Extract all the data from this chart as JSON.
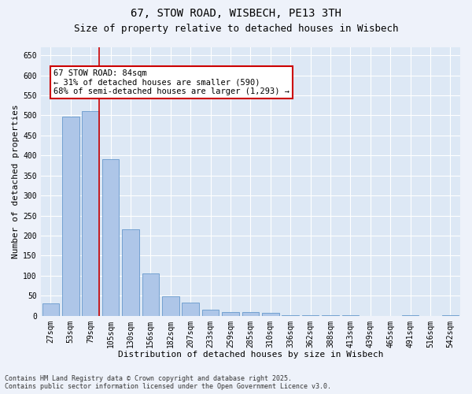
{
  "title": "67, STOW ROAD, WISBECH, PE13 3TH",
  "subtitle": "Size of property relative to detached houses in Wisbech",
  "xlabel": "Distribution of detached houses by size in Wisbech",
  "ylabel": "Number of detached properties",
  "categories": [
    "27sqm",
    "53sqm",
    "79sqm",
    "105sqm",
    "130sqm",
    "156sqm",
    "182sqm",
    "207sqm",
    "233sqm",
    "259sqm",
    "285sqm",
    "310sqm",
    "336sqm",
    "362sqm",
    "388sqm",
    "413sqm",
    "439sqm",
    "465sqm",
    "491sqm",
    "516sqm",
    "542sqm"
  ],
  "values": [
    30,
    497,
    510,
    390,
    215,
    105,
    48,
    32,
    16,
    10,
    10,
    7,
    2,
    2,
    2,
    1,
    0,
    0,
    1,
    0,
    1
  ],
  "bar_color": "#aec6e8",
  "bar_edge_color": "#6699cc",
  "background_color": "#dde8f5",
  "fig_background_color": "#eef2fa",
  "grid_color": "#ffffff",
  "vline_color": "#cc0000",
  "vline_x": 2.42,
  "annotation_text": "67 STOW ROAD: 84sqm\n← 31% of detached houses are smaller (590)\n68% of semi-detached houses are larger (1,293) →",
  "annotation_box_color": "#cc0000",
  "ylim": [
    0,
    670
  ],
  "yticks": [
    0,
    50,
    100,
    150,
    200,
    250,
    300,
    350,
    400,
    450,
    500,
    550,
    600,
    650
  ],
  "footnote": "Contains HM Land Registry data © Crown copyright and database right 2025.\nContains public sector information licensed under the Open Government Licence v3.0.",
  "title_fontsize": 10,
  "subtitle_fontsize": 9,
  "axis_label_fontsize": 8,
  "tick_fontsize": 7,
  "annotation_fontsize": 7.5,
  "footnote_fontsize": 6
}
